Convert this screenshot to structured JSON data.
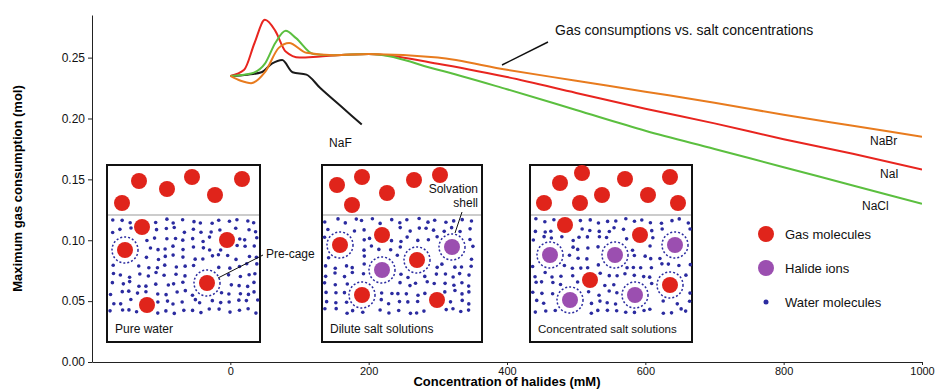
{
  "chart_data": {
    "type": "line",
    "annotation": "Gas consumptions vs. salt concentrations",
    "xlabel": "Concentration of halides (mM)",
    "ylabel": "Maximum gas consumption (mol)",
    "xlim": [
      -200,
      1000
    ],
    "xticks": [
      0,
      200,
      400,
      600,
      800,
      1000
    ],
    "ylim": [
      0,
      0.285
    ],
    "yticks": [
      {
        "value": 0,
        "label": "0.00"
      },
      {
        "value": 0.05,
        "label": "0.05"
      },
      {
        "value": 0.1,
        "label": "0.10"
      },
      {
        "value": 0.15,
        "label": "0.15"
      },
      {
        "value": 0.2,
        "label": "0.20"
      },
      {
        "value": 0.25,
        "label": "0.25"
      }
    ],
    "series": [
      {
        "name": "NaF",
        "color": "#1a1a1a",
        "x": [
          0,
          25,
          45,
          60,
          75,
          90,
          110,
          130,
          160,
          190
        ],
        "values": [
          0.235,
          0.236,
          0.238,
          0.245,
          0.248,
          0.238,
          0.236,
          0.225,
          0.21,
          0.195
        ]
      },
      {
        "name": "NaI",
        "color": "#e8251f",
        "x": [
          0,
          20,
          35,
          50,
          65,
          80,
          100,
          130,
          200,
          300,
          400,
          500,
          600,
          700,
          800,
          900,
          1000
        ],
        "values": [
          0.235,
          0.24,
          0.262,
          0.281,
          0.272,
          0.255,
          0.25,
          0.251,
          0.253,
          0.245,
          0.234,
          0.221,
          0.208,
          0.196,
          0.183,
          0.171,
          0.158
        ]
      },
      {
        "name": "NaCl",
        "color": "#5bbf3f",
        "x": [
          0,
          30,
          50,
          65,
          80,
          95,
          120,
          150,
          200,
          300,
          400,
          500,
          600,
          700,
          800,
          900,
          1000
        ],
        "values": [
          0.235,
          0.237,
          0.245,
          0.262,
          0.272,
          0.266,
          0.253,
          0.252,
          0.253,
          0.24,
          0.224,
          0.207,
          0.19,
          0.175,
          0.16,
          0.145,
          0.13
        ]
      },
      {
        "name": "NaBr",
        "color": "#e87b1e",
        "x": [
          0,
          15,
          30,
          50,
          70,
          85,
          110,
          150,
          200,
          300,
          400,
          500,
          600,
          700,
          800,
          900,
          1000
        ],
        "values": [
          0.235,
          0.231,
          0.229,
          0.238,
          0.258,
          0.262,
          0.254,
          0.252,
          0.253,
          0.25,
          0.24,
          0.231,
          0.222,
          0.213,
          0.203,
          0.194,
          0.185
        ]
      }
    ],
    "diagram": {
      "panels": [
        {
          "caption": "Pure water",
          "callout": "Pre-cage"
        },
        {
          "caption": "Dilute salt solutions",
          "callout": "Solvation shell"
        },
        {
          "caption": "Concentrated salt solutions"
        }
      ],
      "key_items": [
        {
          "label": "Gas molecules",
          "color": "#e0241b"
        },
        {
          "label": "Halide ions",
          "color": "#9b4fb0"
        },
        {
          "label": "Water molecules",
          "color": "#2b2ba0"
        }
      ]
    }
  }
}
